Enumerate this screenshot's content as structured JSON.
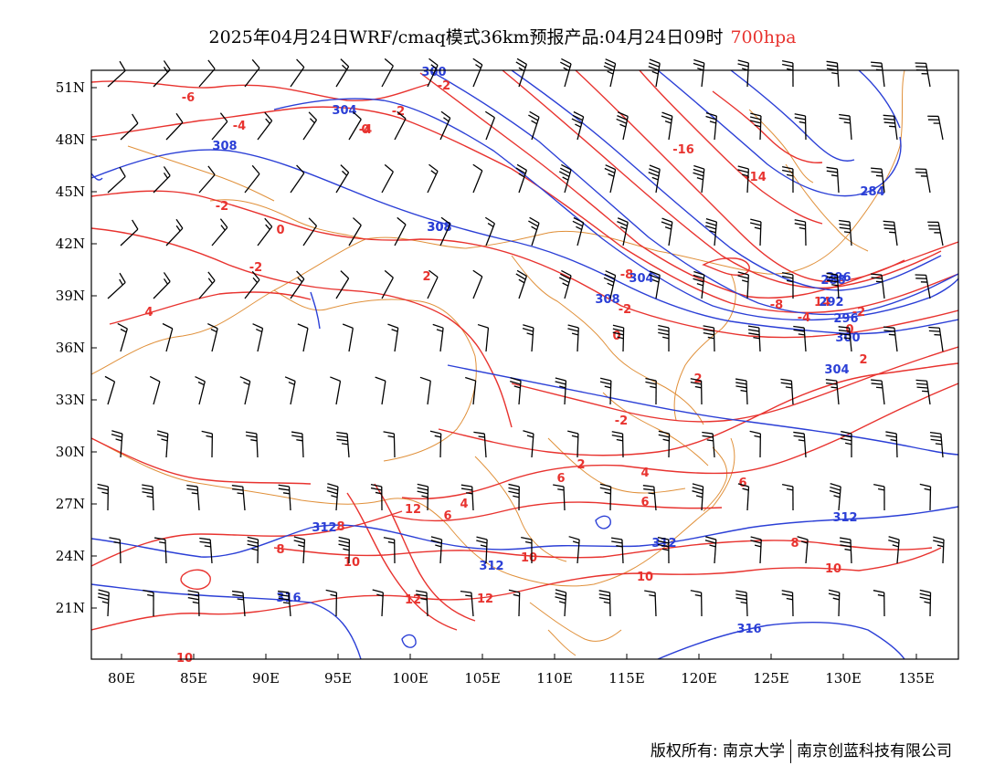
{
  "title": {
    "main": "2025年04月24日WRF/cmaq模式36km预报产品:04月24日09时",
    "level": "700hpa"
  },
  "axes": {
    "lat_labels": [
      "51N",
      "48N",
      "45N",
      "42N",
      "39N",
      "36N",
      "33N",
      "30N",
      "27N",
      "24N",
      "21N"
    ],
    "lon_labels": [
      "80E",
      "85E",
      "90E",
      "95E",
      "100E",
      "105E",
      "110E",
      "115E",
      "120E",
      "125E",
      "130E",
      "135E"
    ]
  },
  "colors": {
    "temperature": "#e8332f",
    "geopotential": "#2b3fd6",
    "boundary": "#e0903a",
    "wind": "#000000"
  },
  "contour_labels": {
    "temperature": [
      "-6",
      "-4",
      "-2",
      "-4",
      "0",
      "-2",
      "-2",
      "0",
      "2",
      "-2",
      "4",
      "-16",
      "-14",
      "-8",
      "-2",
      "-8",
      "-4",
      "-2",
      "0",
      "2",
      "2",
      "0",
      "-2",
      "2",
      "4",
      "6",
      "6",
      "12",
      "6",
      "4",
      "8",
      "8",
      "10",
      "10",
      "12",
      "12",
      "10",
      "10",
      "8",
      "6",
      "10",
      "14"
    ],
    "geopotential": [
      "300",
      "304",
      "308",
      "308",
      "308",
      "304",
      "296",
      "284",
      "288",
      "292",
      "296",
      "300",
      "304",
      "312",
      "312",
      "312",
      "316",
      "316",
      "312",
      "308"
    ]
  },
  "footer": {
    "copyright_left": "版权所有: 南京大学",
    "copyright_right": "南京创蓝科技有限公司"
  }
}
